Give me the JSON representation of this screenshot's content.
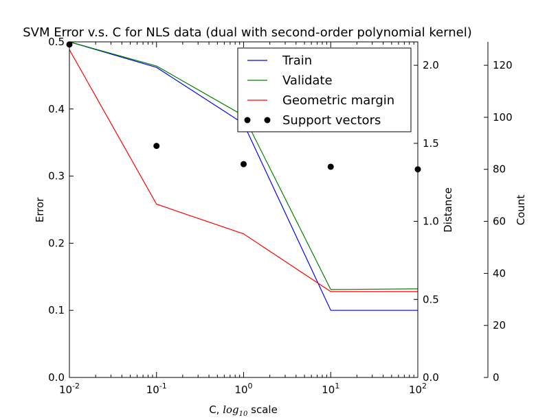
{
  "chart_data": {
    "type": "line",
    "title": "SVM Error v.s. C for NLS data (dual with second-order polynomial kernel)",
    "xlabel": {
      "prefix": "C, ",
      "log_base": "log",
      "log_sub": "10",
      "suffix": " scale"
    },
    "xscale": "log",
    "xlim": [
      0.01,
      100
    ],
    "x": [
      0.01,
      0.1,
      1,
      10,
      100
    ],
    "x_ticks": [
      {
        "base": "10",
        "exp": "-2"
      },
      {
        "base": "10",
        "exp": "-1"
      },
      {
        "base": "10",
        "exp": "0"
      },
      {
        "base": "10",
        "exp": "1"
      },
      {
        "base": "10",
        "exp": "2"
      }
    ],
    "axes": {
      "error": {
        "label": "Error",
        "ylim": [
          0,
          0.5
        ],
        "ticks": [
          "0.0",
          "0.1",
          "0.2",
          "0.3",
          "0.4",
          "0.5"
        ]
      },
      "distance": {
        "label": "Distance",
        "ylim": [
          0,
          2.15
        ],
        "ticks": [
          "0.0",
          "0.5",
          "1.0",
          "1.5",
          "2.0"
        ]
      },
      "count": {
        "label": "Count",
        "ylim": [
          0,
          129
        ],
        "ticks": [
          "0",
          "20",
          "40",
          "60",
          "80",
          "100",
          "120"
        ]
      }
    },
    "series": [
      {
        "name": "Train",
        "axis": "error",
        "kind": "line",
        "color": "#0000ff",
        "values": [
          0.5,
          0.462,
          0.378,
          0.1,
          0.1
        ]
      },
      {
        "name": "Validate",
        "axis": "error",
        "kind": "line",
        "color": "#008000",
        "values": [
          0.5,
          0.464,
          0.39,
          0.131,
          0.132
        ]
      },
      {
        "name": "Geometric margin",
        "axis": "distance",
        "kind": "line",
        "color": "#ff0000",
        "values": [
          2.1,
          1.11,
          0.92,
          0.55,
          0.55
        ]
      },
      {
        "name": "Support vectors",
        "axis": "count",
        "kind": "scatter",
        "color": "#000000",
        "values": [
          128,
          89,
          82,
          81,
          80
        ]
      }
    ],
    "legend": {
      "placement": "top-right"
    },
    "grid": false
  }
}
